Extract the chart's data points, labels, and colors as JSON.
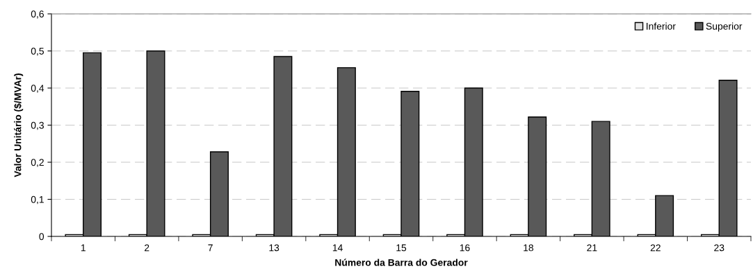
{
  "chart_data": {
    "type": "bar",
    "xlabel": "Número da Barra do Gerador",
    "ylabel": "Valor Unitário ($/MVAr)",
    "categories": [
      "1",
      "2",
      "7",
      "13",
      "14",
      "15",
      "16",
      "18",
      "21",
      "22",
      "23"
    ],
    "series": [
      {
        "name": "Inferior",
        "color": "#e0e0e0",
        "values": [
          0.005,
          0.005,
          0.005,
          0.005,
          0.005,
          0.005,
          0.005,
          0.005,
          0.005,
          0.005,
          0.005
        ]
      },
      {
        "name": "Superior",
        "color": "#595959",
        "values": [
          0.495,
          0.5,
          0.228,
          0.485,
          0.455,
          0.391,
          0.4,
          0.322,
          0.31,
          0.11,
          0.421
        ]
      }
    ],
    "ylim": [
      0,
      0.6
    ],
    "yticks": [
      {
        "value": 0,
        "label": "0"
      },
      {
        "value": 0.1,
        "label": "0,1"
      },
      {
        "value": 0.2,
        "label": "0,2"
      },
      {
        "value": 0.3,
        "label": "0,3"
      },
      {
        "value": 0.4,
        "label": "0,4"
      },
      {
        "value": 0.5,
        "label": "0,5"
      },
      {
        "value": 0.6,
        "label": "0,6"
      }
    ],
    "grid": "y",
    "legend": "top right"
  }
}
